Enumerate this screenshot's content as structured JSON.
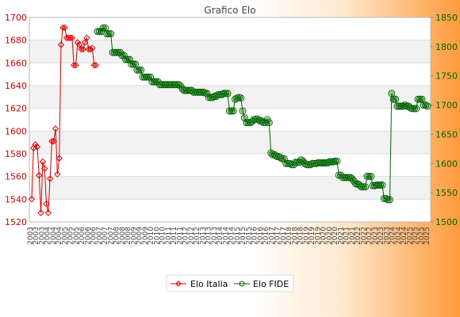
{
  "chart_data": {
    "type": "line",
    "title": "Grafico Elo",
    "left_axis": {
      "ylim": [
        1520,
        1700
      ],
      "ticks": [
        1520,
        1540,
        1560,
        1580,
        1600,
        1620,
        1640,
        1660,
        1680,
        1700
      ],
      "color": "#cc0000"
    },
    "right_axis": {
      "ylim": [
        1500,
        1850
      ],
      "ticks": [
        1500,
        1550,
        1600,
        1650,
        1700,
        1750,
        1800,
        1850
      ],
      "color": "#006600"
    },
    "grid": true,
    "legend_position": "bottom",
    "x_tick_labels": [
      "2003",
      "2003",
      "2003",
      "2004",
      "2004",
      "2004",
      "2005",
      "2005",
      "2005",
      "2006",
      "2006",
      "2006",
      "2007",
      "2007",
      "2007",
      "2008",
      "2008",
      "2008",
      "2009",
      "2009",
      "2009",
      "2010",
      "2010",
      "2010",
      "2011",
      "2011",
      "2011",
      "2012",
      "2012",
      "2012",
      "2013",
      "2013",
      "2013",
      "2014",
      "2014",
      "2014",
      "2015",
      "2015",
      "2015",
      "2016",
      "2016",
      "2016",
      "2017",
      "2017",
      "2017",
      "2018",
      "2018",
      "2018",
      "2019",
      "2019",
      "2019",
      "2020",
      "2020",
      "2020",
      "2021",
      "2021",
      "2021",
      "2022",
      "2022",
      "2022",
      "2023",
      "2023",
      "2023",
      "2024",
      "2024",
      "2024",
      "2025",
      "2025",
      "2025",
      "2025"
    ],
    "series": [
      {
        "name": "Elo Italia",
        "axis": "left",
        "color": "#dd0000",
        "values": [
          1540,
          1585,
          1588,
          1586,
          1561,
          1528,
          1573,
          1567,
          1536,
          1528,
          1558,
          1591,
          1591,
          1602,
          1562,
          1576,
          1676,
          1691,
          1691,
          1682,
          1682,
          1682,
          1682,
          1658,
          1658,
          1678,
          1676,
          1672,
          1672,
          1678,
          1682,
          1672,
          1672,
          1673,
          1658,
          1658
        ]
      },
      {
        "name": "Elo FIDE",
        "axis": "right",
        "color": "#006600",
        "values": [
          1826,
          1826,
          1826,
          1832,
          1832,
          1822,
          1822,
          1822,
          1790,
          1790,
          1790,
          1790,
          1790,
          1785,
          1785,
          1778,
          1778,
          1778,
          1770,
          1770,
          1770,
          1760,
          1760,
          1760,
          1748,
          1748,
          1748,
          1748,
          1748,
          1740,
          1740,
          1740,
          1740,
          1735,
          1735,
          1735,
          1735,
          1735,
          1735,
          1735,
          1735,
          1735,
          1735,
          1735,
          1733,
          1728,
          1725,
          1725,
          1725,
          1725,
          1725,
          1722,
          1722,
          1722,
          1722,
          1722,
          1722,
          1721,
          1720,
          1713,
          1713,
          1713,
          1715,
          1715,
          1718,
          1718,
          1718,
          1720,
          1720,
          1720,
          1690,
          1690,
          1690,
          1710,
          1712,
          1713,
          1712,
          1690,
          1678,
          1670,
          1670,
          1670,
          1672,
          1675,
          1676,
          1676,
          1673,
          1673,
          1670,
          1670,
          1675,
          1670,
          1618,
          1615,
          1615,
          1612,
          1612,
          1610,
          1608,
          1608,
          1600,
          1600,
          1600,
          1598,
          1598,
          1602,
          1602,
          1602,
          1606,
          1604,
          1600,
          1598,
          1598,
          1598,
          1600,
          1600,
          1600,
          1601,
          1601,
          1601,
          1601,
          1601,
          1601,
          1603,
          1603,
          1603,
          1604,
          1604,
          1580,
          1580,
          1576,
          1576,
          1576,
          1576,
          1576,
          1574,
          1570,
          1565,
          1565,
          1563,
          1560,
          1560,
          1560,
          1578,
          1578,
          1578,
          1562,
          1562,
          1563,
          1563,
          1563,
          1563,
          1540,
          1540,
          1538,
          1538,
          1720,
          1710,
          1710,
          1698,
          1698,
          1698,
          1698,
          1700,
          1698,
          1698,
          1695,
          1694,
          1694,
          1694,
          1710,
          1710,
          1710,
          1700,
          1700,
          1698
        ]
      }
    ]
  }
}
